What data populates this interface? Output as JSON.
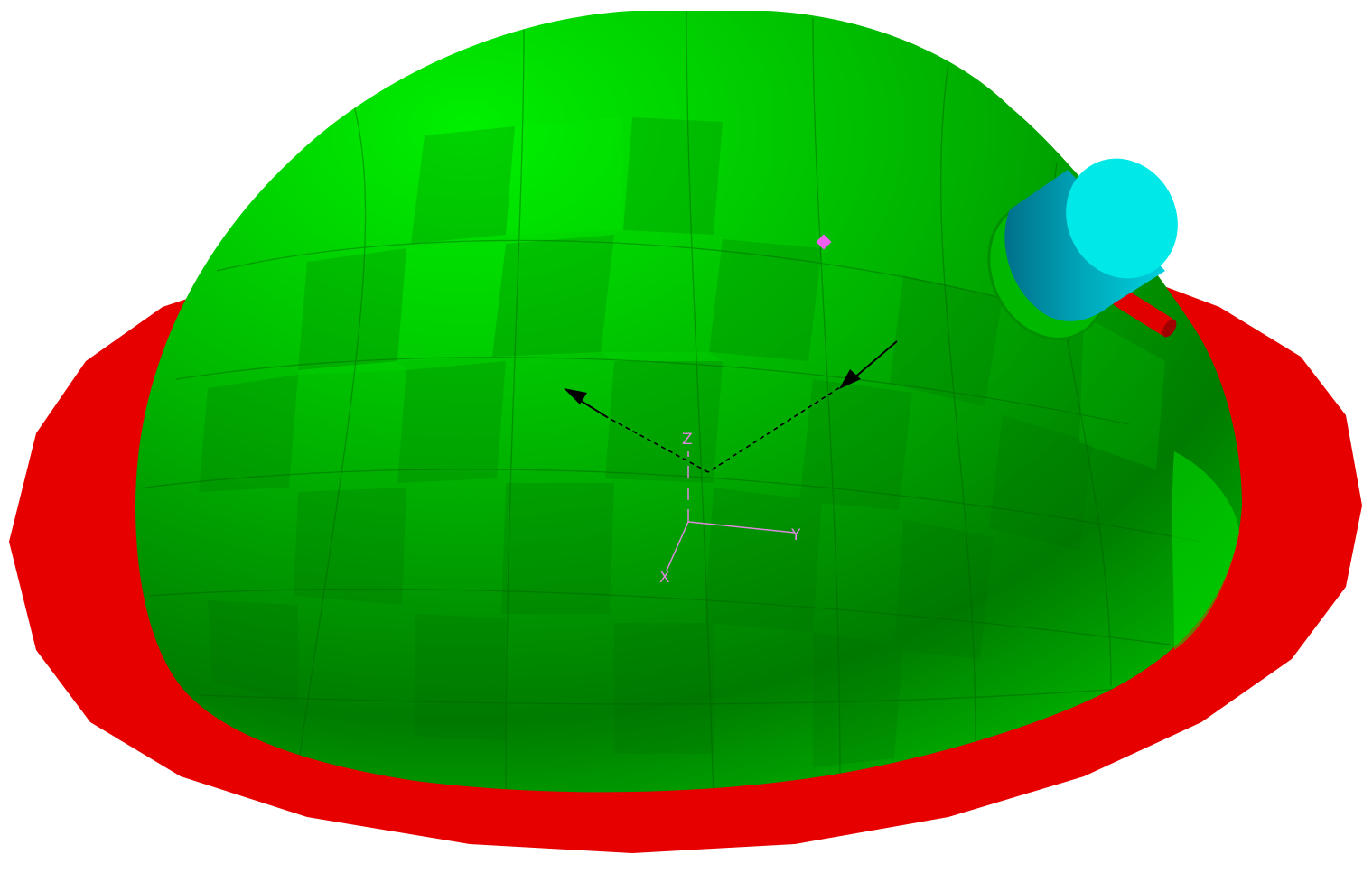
{
  "scene": {
    "background_color": "#ffffff",
    "colors": {
      "ground_plane": "#e60000",
      "dome_light": "#00e600",
      "dome_mid": "#00c000",
      "dome_dark": "#008000",
      "receiver_cap": "#00e6e6",
      "receiver_body": "#0099aa",
      "feed_rods": "#e60000",
      "axis_triad": "#e088e0",
      "source_marker": "#f060f0",
      "ray": "#000000"
    },
    "objects": [
      "ground-plane",
      "hemisphere-dome",
      "cylindrical-receiver",
      "feed-rods",
      "source-marker",
      "incident-ray",
      "reflected-ray",
      "axis-triad"
    ]
  },
  "axes": {
    "x_label": "X",
    "y_label": "Y",
    "z_label": "Z"
  }
}
